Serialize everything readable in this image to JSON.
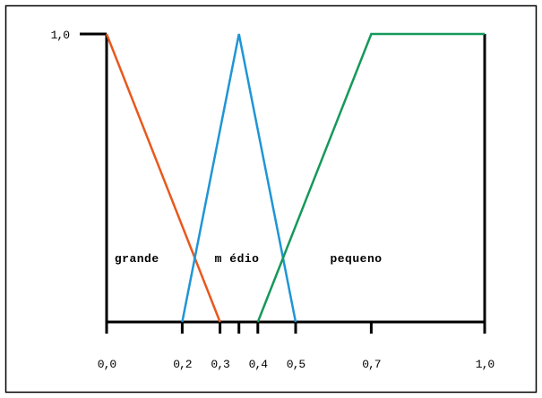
{
  "chart_data": {
    "type": "line",
    "title": "",
    "xlabel": "",
    "ylabel": "",
    "xlim": [
      0,
      1
    ],
    "ylim": [
      0,
      1
    ],
    "x_ticks": [
      {
        "value": 0.0,
        "label": "0,0"
      },
      {
        "value": 0.2,
        "label": "0,2"
      },
      {
        "value": 0.3,
        "label": "0,3"
      },
      {
        "value": 0.35,
        "label": ""
      },
      {
        "value": 0.4,
        "label": "0,4"
      },
      {
        "value": 0.5,
        "label": "0,5"
      },
      {
        "value": 0.7,
        "label": "0,7"
      },
      {
        "value": 1.0,
        "label": "1,0"
      }
    ],
    "y_ticks": [
      {
        "value": 1.0,
        "label": "1,0"
      }
    ],
    "series": [
      {
        "name": "grande",
        "color": "#e8581c",
        "points": [
          [
            0.0,
            1.0
          ],
          [
            0.3,
            0.0
          ]
        ]
      },
      {
        "name": "médio",
        "color": "#1f95d6",
        "points": [
          [
            0.2,
            0.0
          ],
          [
            0.35,
            1.0
          ],
          [
            0.5,
            0.0
          ]
        ]
      },
      {
        "name": "pequeno",
        "color": "#16985a",
        "points": [
          [
            0.4,
            0.0
          ],
          [
            0.7,
            1.0
          ],
          [
            1.0,
            1.0
          ]
        ]
      }
    ],
    "region_labels": [
      {
        "text": "grande",
        "x": 0.08,
        "y": 0.22
      },
      {
        "text": "m édio",
        "x": 0.345,
        "y": 0.22
      },
      {
        "text": "pequeno",
        "x": 0.66,
        "y": 0.22
      }
    ],
    "grid": false,
    "legend": "none"
  }
}
